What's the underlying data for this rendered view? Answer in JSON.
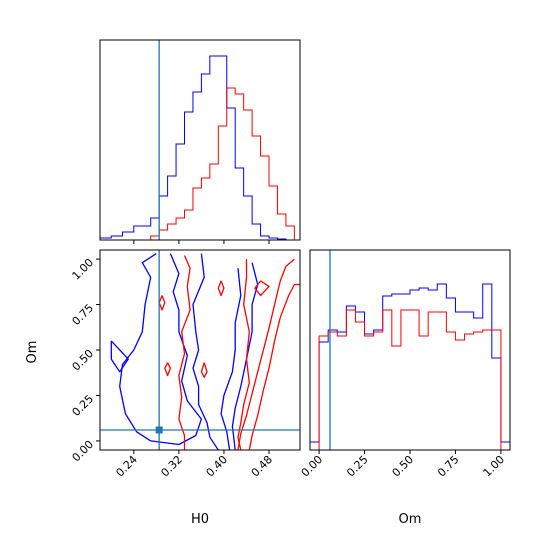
{
  "chart_data": [
    {
      "panel": "top-left",
      "type": "histogram",
      "variable": "H0",
      "xlim": [
        0.18,
        0.535
      ],
      "truth": 0.285,
      "series": [
        {
          "color": "#0000ff",
          "edges": [
            0.18,
            0.2,
            0.22,
            0.24,
            0.255,
            0.27,
            0.285,
            0.3,
            0.315,
            0.33,
            0.345,
            0.36,
            0.375,
            0.39,
            0.405,
            0.42,
            0.435,
            0.45,
            0.465,
            0.48,
            0.495,
            0.51,
            0.525
          ],
          "values": [
            0.01,
            0.02,
            0.04,
            0.07,
            0.07,
            0.11,
            0.22,
            0.32,
            0.48,
            0.64,
            0.74,
            0.83,
            0.92,
            0.92,
            0.66,
            0.36,
            0.22,
            0.08,
            0.02,
            0.01,
            0.005,
            0.0
          ]
        },
        {
          "color": "#ff0000",
          "edges": [
            0.18,
            0.2,
            0.22,
            0.24,
            0.255,
            0.27,
            0.285,
            0.3,
            0.315,
            0.33,
            0.345,
            0.36,
            0.375,
            0.39,
            0.405,
            0.42,
            0.435,
            0.45,
            0.465,
            0.48,
            0.495,
            0.51,
            0.525
          ],
          "values": [
            0.0,
            0.0,
            0.0,
            0.0,
            0.0,
            0.02,
            0.05,
            0.08,
            0.11,
            0.15,
            0.26,
            0.31,
            0.38,
            0.57,
            0.76,
            0.73,
            0.65,
            0.52,
            0.42,
            0.27,
            0.13,
            0.07
          ]
        }
      ]
    },
    {
      "panel": "bottom-left",
      "type": "contour",
      "xlabel": "H0",
      "ylabel": "Om",
      "xlim": [
        0.18,
        0.535
      ],
      "ylim": [
        -0.05,
        1.05
      ],
      "xticks": [
        "0.24",
        "0.32",
        "0.40",
        "0.48"
      ],
      "xtick_values": [
        0.24,
        0.32,
        0.4,
        0.48
      ],
      "yticks": [
        "0.00",
        "0.25",
        "0.50",
        "0.75",
        "1.00"
      ],
      "ytick_values": [
        0.0,
        0.25,
        0.5,
        0.75,
        1.0
      ],
      "truth": [
        0.285,
        0.06
      ],
      "series": [
        {
          "color": "#0000ff",
          "contours": [
            [
              [
                0.28,
                1.03
              ],
              [
                0.255,
                0.98
              ],
              [
                0.27,
                0.9
              ],
              [
                0.26,
                0.75
              ],
              [
                0.255,
                0.6
              ],
              [
                0.24,
                0.5
              ],
              [
                0.22,
                0.42
              ],
              [
                0.215,
                0.3
              ],
              [
                0.225,
                0.15
              ],
              [
                0.245,
                0.05
              ],
              [
                0.27,
                0.0
              ],
              [
                0.32,
                -0.02
              ],
              [
                0.35,
                0.03
              ],
              [
                0.36,
                0.12
              ],
              [
                0.335,
                0.22
              ],
              [
                0.325,
                0.33
              ],
              [
                0.335,
                0.47
              ],
              [
                0.32,
                0.6
              ],
              [
                0.32,
                0.72
              ],
              [
                0.31,
                0.82
              ],
              [
                0.32,
                0.92
              ],
              [
                0.305,
                1.03
              ]
            ],
            [
              [
                0.36,
                1.03
              ],
              [
                0.365,
                0.9
              ],
              [
                0.345,
                0.75
              ],
              [
                0.35,
                0.6
              ],
              [
                0.355,
                0.5
              ],
              [
                0.345,
                0.4
              ],
              [
                0.355,
                0.3
              ],
              [
                0.355,
                0.2
              ],
              [
                0.37,
                0.1
              ],
              [
                0.375,
                0.02
              ],
              [
                0.39,
                -0.05
              ]
            ],
            [
              [
                0.425,
                0.95
              ],
              [
                0.43,
                0.8
              ],
              [
                0.42,
                0.65
              ],
              [
                0.42,
                0.5
              ],
              [
                0.415,
                0.38
              ],
              [
                0.4,
                0.25
              ],
              [
                0.395,
                0.15
              ],
              [
                0.405,
                0.05
              ],
              [
                0.41,
                -0.05
              ]
            ],
            [
              [
                0.45,
                0.98
              ],
              [
                0.46,
                0.86
              ],
              [
                0.45,
                0.75
              ],
              [
                0.45,
                0.6
              ],
              [
                0.44,
                0.45
              ],
              [
                0.43,
                0.3
              ],
              [
                0.42,
                0.18
              ],
              [
                0.415,
                0.08
              ],
              [
                0.42,
                -0.05
              ]
            ],
            [
              [
                0.2,
                0.55
              ],
              [
                0.23,
                0.45
              ],
              [
                0.215,
                0.38
              ],
              [
                0.2,
                0.45
              ],
              [
                0.2,
                0.55
              ]
            ]
          ]
        },
        {
          "color": "#ff0000",
          "contours": [
            [
              [
                0.525,
                1.0
              ],
              [
                0.51,
                0.96
              ],
              [
                0.5,
                0.88
              ],
              [
                0.49,
                0.75
              ],
              [
                0.48,
                0.62
              ],
              [
                0.47,
                0.5
              ],
              [
                0.46,
                0.38
              ],
              [
                0.45,
                0.26
              ],
              [
                0.44,
                0.14
              ],
              [
                0.43,
                0.04
              ],
              [
                0.425,
                -0.05
              ]
            ],
            [
              [
                0.535,
                0.86
              ],
              [
                0.525,
                0.86
              ],
              [
                0.515,
                0.8
              ],
              [
                0.5,
                0.68
              ],
              [
                0.49,
                0.55
              ],
              [
                0.48,
                0.4
              ],
              [
                0.47,
                0.28
              ],
              [
                0.46,
                0.14
              ],
              [
                0.45,
                0.03
              ],
              [
                0.445,
                -0.05
              ]
            ],
            [
              [
                0.33,
                1.02
              ],
              [
                0.34,
                0.95
              ],
              [
                0.335,
                0.85
              ],
              [
                0.34,
                0.72
              ],
              [
                0.325,
                0.6
              ],
              [
                0.33,
                0.48
              ],
              [
                0.32,
                0.36
              ],
              [
                0.325,
                0.24
              ],
              [
                0.32,
                0.12
              ],
              [
                0.33,
                0.03
              ],
              [
                0.33,
                -0.05
              ]
            ],
            [
              [
                0.44,
                1.0
              ],
              [
                0.44,
                0.9
              ],
              [
                0.435,
                0.75
              ],
              [
                0.445,
                0.6
              ],
              [
                0.44,
                0.45
              ],
              [
                0.445,
                0.32
              ],
              [
                0.435,
                0.2
              ],
              [
                0.43,
                0.1
              ],
              [
                0.425,
                0.02
              ],
              [
                0.43,
                -0.05
              ]
            ],
            [
              [
                0.29,
                0.8
              ],
              [
                0.295,
                0.76
              ],
              [
                0.29,
                0.72
              ],
              [
                0.285,
                0.76
              ],
              [
                0.29,
                0.8
              ]
            ],
            [
              [
                0.3,
                0.43
              ],
              [
                0.305,
                0.4
              ],
              [
                0.3,
                0.36
              ],
              [
                0.295,
                0.4
              ],
              [
                0.3,
                0.43
              ]
            ],
            [
              [
                0.365,
                0.43
              ],
              [
                0.37,
                0.38
              ],
              [
                0.365,
                0.35
              ],
              [
                0.36,
                0.38
              ],
              [
                0.365,
                0.43
              ]
            ],
            [
              [
                0.395,
                0.88
              ],
              [
                0.4,
                0.84
              ],
              [
                0.395,
                0.8
              ],
              [
                0.39,
                0.84
              ],
              [
                0.395,
                0.88
              ]
            ],
            [
              [
                0.465,
                0.88
              ],
              [
                0.48,
                0.85
              ],
              [
                0.465,
                0.8
              ],
              [
                0.455,
                0.84
              ],
              [
                0.465,
                0.88
              ]
            ]
          ]
        }
      ]
    },
    {
      "panel": "bottom-right",
      "type": "histogram",
      "variable": "Om",
      "xlabel": "Om",
      "xlim": [
        -0.05,
        1.05
      ],
      "xticks": [
        "0.00",
        "0.25",
        "0.50",
        "0.75",
        "1.00"
      ],
      "xtick_values": [
        0.0,
        0.25,
        0.5,
        0.75,
        1.0
      ],
      "truth": 0.06,
      "series": [
        {
          "color": "#0000ff",
          "edges": [
            -0.05,
            0.0,
            0.05,
            0.1,
            0.15,
            0.2,
            0.25,
            0.3,
            0.35,
            0.4,
            0.45,
            0.5,
            0.55,
            0.6,
            0.65,
            0.7,
            0.75,
            0.8,
            0.85,
            0.9,
            0.95,
            1.0,
            1.05
          ],
          "values": [
            0.04,
            0.54,
            0.6,
            0.59,
            0.72,
            0.69,
            0.58,
            0.6,
            0.77,
            0.78,
            0.78,
            0.8,
            0.81,
            0.8,
            0.83,
            0.76,
            0.69,
            0.69,
            0.66,
            0.83,
            0.46,
            0.04
          ]
        },
        {
          "color": "#ff0000",
          "edges": [
            -0.05,
            0.0,
            0.05,
            0.1,
            0.15,
            0.2,
            0.25,
            0.3,
            0.35,
            0.4,
            0.45,
            0.5,
            0.55,
            0.6,
            0.65,
            0.7,
            0.75,
            0.8,
            0.85,
            0.9,
            0.95,
            1.0,
            1.05
          ],
          "values": [
            0.0,
            0.57,
            0.59,
            0.57,
            0.7,
            0.64,
            0.57,
            0.59,
            0.7,
            0.52,
            0.7,
            0.7,
            0.57,
            0.69,
            0.69,
            0.59,
            0.55,
            0.58,
            0.59,
            0.6,
            0.6,
            0.0
          ]
        }
      ]
    }
  ],
  "colors": {
    "truth": "#1f77b4",
    "series_a": "#0000ff",
    "series_b": "#ff0000",
    "frame": "#000000"
  }
}
